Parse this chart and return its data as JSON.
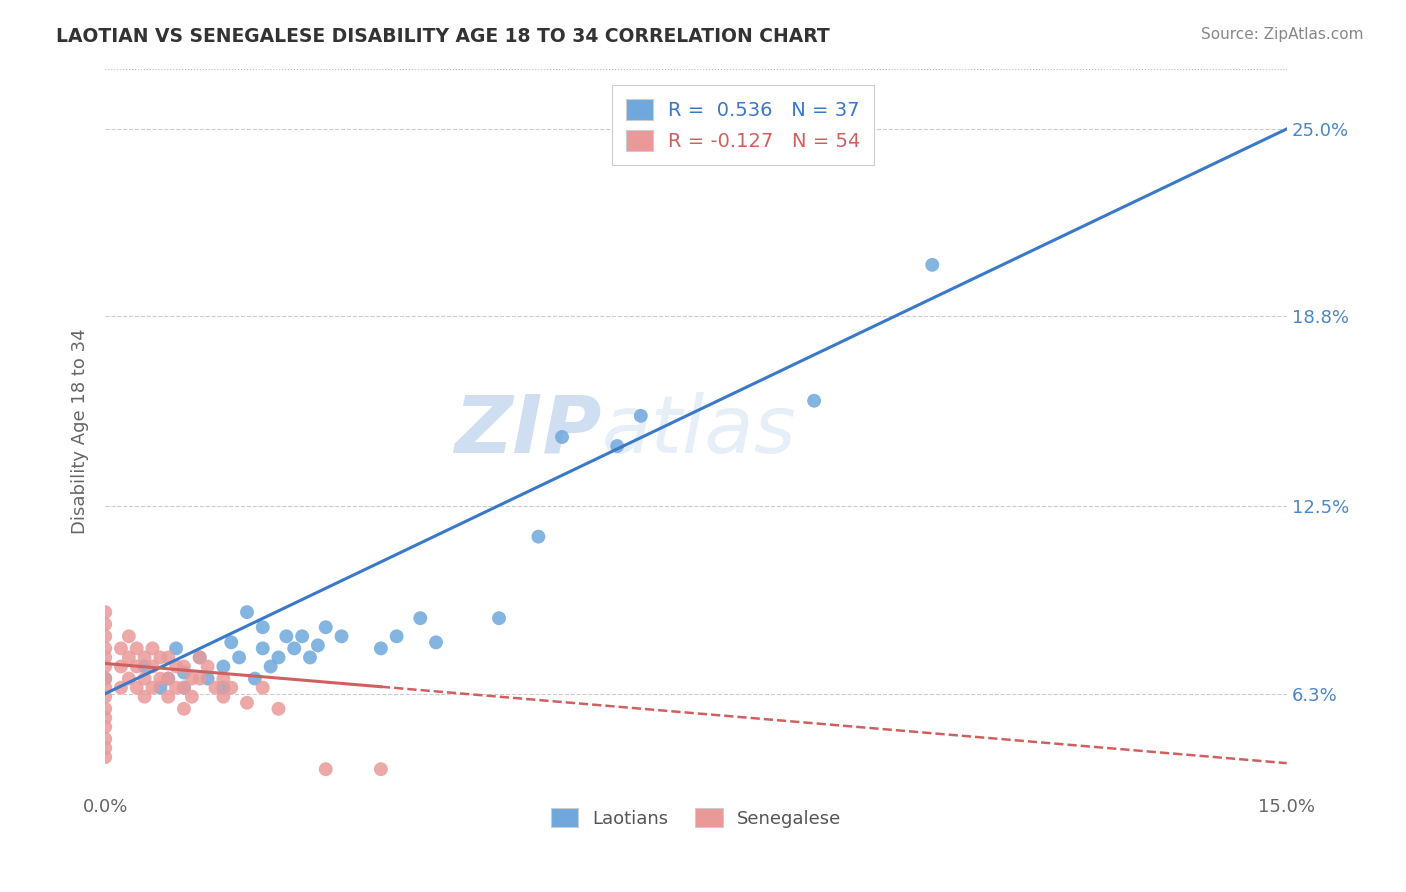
{
  "title": "LAOTIAN VS SENEGALESE DISABILITY AGE 18 TO 34 CORRELATION CHART",
  "source": "Source: ZipAtlas.com",
  "ylabel": "Disability Age 18 to 34",
  "xlim": [
    0.0,
    0.15
  ],
  "ylim": [
    0.03,
    0.27
  ],
  "laotian_R": 0.536,
  "laotian_N": 37,
  "senegalese_R": -0.127,
  "senegalese_N": 54,
  "laotian_color": "#6fa8dc",
  "senegalese_color": "#ea9999",
  "laotian_line_color": "#3a78c8",
  "senegalese_line_color": "#d06060",
  "watermark_zip": "ZIP",
  "watermark_atlas": "atlas",
  "background_color": "#ffffff",
  "y_ticks": [
    0.063,
    0.125,
    0.188,
    0.25
  ],
  "y_tick_labels": [
    "6.3%",
    "12.5%",
    "18.8%",
    "25.0%"
  ],
  "laotian_points": [
    [
      0.0,
      0.068
    ],
    [
      0.005,
      0.072
    ],
    [
      0.007,
      0.065
    ],
    [
      0.008,
      0.068
    ],
    [
      0.009,
      0.078
    ],
    [
      0.01,
      0.07
    ],
    [
      0.01,
      0.065
    ],
    [
      0.012,
      0.075
    ],
    [
      0.013,
      0.068
    ],
    [
      0.015,
      0.072
    ],
    [
      0.015,
      0.065
    ],
    [
      0.016,
      0.08
    ],
    [
      0.017,
      0.075
    ],
    [
      0.018,
      0.09
    ],
    [
      0.019,
      0.068
    ],
    [
      0.02,
      0.085
    ],
    [
      0.02,
      0.078
    ],
    [
      0.021,
      0.072
    ],
    [
      0.022,
      0.075
    ],
    [
      0.023,
      0.082
    ],
    [
      0.024,
      0.078
    ],
    [
      0.025,
      0.082
    ],
    [
      0.026,
      0.075
    ],
    [
      0.027,
      0.079
    ],
    [
      0.028,
      0.085
    ],
    [
      0.03,
      0.082
    ],
    [
      0.035,
      0.078
    ],
    [
      0.037,
      0.082
    ],
    [
      0.04,
      0.088
    ],
    [
      0.042,
      0.08
    ],
    [
      0.05,
      0.088
    ],
    [
      0.055,
      0.115
    ],
    [
      0.058,
      0.148
    ],
    [
      0.065,
      0.145
    ],
    [
      0.068,
      0.155
    ],
    [
      0.09,
      0.16
    ],
    [
      0.105,
      0.205
    ]
  ],
  "senegalese_points": [
    [
      0.0,
      0.09
    ],
    [
      0.0,
      0.086
    ],
    [
      0.0,
      0.082
    ],
    [
      0.0,
      0.078
    ],
    [
      0.0,
      0.075
    ],
    [
      0.0,
      0.072
    ],
    [
      0.0,
      0.068
    ],
    [
      0.0,
      0.065
    ],
    [
      0.0,
      0.062
    ],
    [
      0.0,
      0.058
    ],
    [
      0.0,
      0.055
    ],
    [
      0.0,
      0.052
    ],
    [
      0.0,
      0.048
    ],
    [
      0.0,
      0.045
    ],
    [
      0.0,
      0.042
    ],
    [
      0.002,
      0.078
    ],
    [
      0.002,
      0.072
    ],
    [
      0.002,
      0.065
    ],
    [
      0.003,
      0.082
    ],
    [
      0.003,
      0.075
    ],
    [
      0.003,
      0.068
    ],
    [
      0.004,
      0.078
    ],
    [
      0.004,
      0.072
    ],
    [
      0.004,
      0.065
    ],
    [
      0.005,
      0.075
    ],
    [
      0.005,
      0.068
    ],
    [
      0.005,
      0.062
    ],
    [
      0.006,
      0.078
    ],
    [
      0.006,
      0.072
    ],
    [
      0.006,
      0.065
    ],
    [
      0.007,
      0.075
    ],
    [
      0.007,
      0.068
    ],
    [
      0.008,
      0.075
    ],
    [
      0.008,
      0.068
    ],
    [
      0.008,
      0.062
    ],
    [
      0.009,
      0.072
    ],
    [
      0.009,
      0.065
    ],
    [
      0.01,
      0.072
    ],
    [
      0.01,
      0.065
    ],
    [
      0.01,
      0.058
    ],
    [
      0.011,
      0.068
    ],
    [
      0.011,
      0.062
    ],
    [
      0.012,
      0.075
    ],
    [
      0.012,
      0.068
    ],
    [
      0.013,
      0.072
    ],
    [
      0.014,
      0.065
    ],
    [
      0.015,
      0.068
    ],
    [
      0.015,
      0.062
    ],
    [
      0.016,
      0.065
    ],
    [
      0.018,
      0.06
    ],
    [
      0.02,
      0.065
    ],
    [
      0.022,
      0.058
    ],
    [
      0.028,
      0.038
    ],
    [
      0.035,
      0.038
    ]
  ]
}
